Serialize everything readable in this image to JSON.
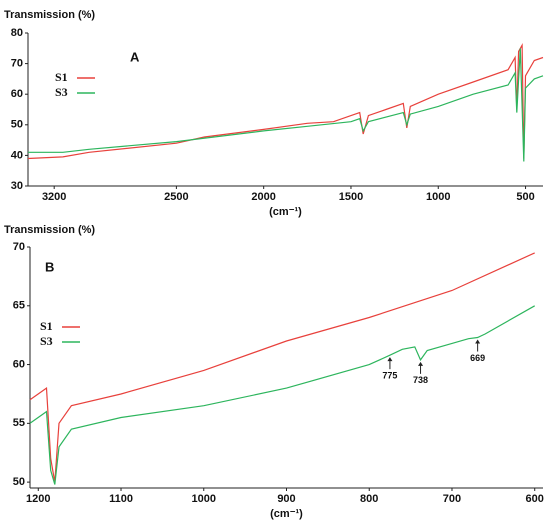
{
  "chart_data": [
    {
      "type": "line",
      "title": "Transmission (%)",
      "panel_label": "A",
      "x_label": "(cm⁻¹)",
      "xlim": [
        3350,
        400
      ],
      "xticks": [
        3200,
        2500,
        2000,
        1500,
        1000,
        500
      ],
      "ylim": [
        30,
        80
      ],
      "yticks": [
        30,
        40,
        50,
        60,
        70,
        80
      ],
      "series": [
        {
          "name": "S1",
          "color": "#e8413c",
          "x": [
            3350,
            3150,
            3000,
            2500,
            2340,
            2000,
            1750,
            1600,
            1500,
            1450,
            1430,
            1400,
            1300,
            1200,
            1180,
            1160,
            1000,
            800,
            600,
            560,
            550,
            540,
            520,
            510,
            500,
            450,
            400
          ],
          "values": [
            39,
            39.5,
            41,
            44,
            46,
            48.5,
            50.5,
            51,
            53,
            54,
            47,
            53,
            55,
            57,
            49,
            56,
            60,
            64,
            68,
            72,
            55,
            74,
            76,
            39,
            66,
            71,
            72
          ]
        },
        {
          "name": "S3",
          "color": "#2db55d",
          "x": [
            3350,
            3150,
            3000,
            2500,
            2000,
            1750,
            1500,
            1450,
            1430,
            1400,
            1200,
            1180,
            1160,
            1000,
            800,
            600,
            560,
            550,
            530,
            510,
            500,
            450,
            400
          ],
          "values": [
            41,
            41,
            42,
            44.5,
            48,
            49.5,
            51,
            52,
            48,
            51,
            54,
            50,
            53.5,
            56,
            60,
            63,
            67,
            54,
            75,
            38,
            62,
            65,
            66
          ]
        }
      ]
    },
    {
      "type": "line",
      "title": "Transmission (%)",
      "panel_label": "B",
      "x_label": "(cm⁻¹)",
      "xlim": [
        1210,
        590
      ],
      "xticks": [
        1200,
        1100,
        1000,
        900,
        800,
        700,
        600
      ],
      "ylim": [
        49.5,
        70
      ],
      "yticks": [
        50,
        55,
        60,
        65,
        70
      ],
      "series": [
        {
          "name": "S1",
          "color": "#e8413c",
          "x": [
            1210,
            1190,
            1185,
            1180,
            1175,
            1160,
            1100,
            1000,
            900,
            800,
            700,
            600
          ],
          "values": [
            57,
            58,
            52,
            50,
            55,
            56.5,
            57.5,
            59.5,
            62,
            64,
            66.3,
            69.5
          ]
        },
        {
          "name": "S3",
          "color": "#2db55d",
          "x": [
            1210,
            1190,
            1185,
            1180,
            1175,
            1160,
            1100,
            1000,
            900,
            800,
            775,
            760,
            745,
            738,
            730,
            700,
            680,
            669,
            660,
            600
          ],
          "values": [
            55,
            56,
            51,
            49.8,
            53,
            54.5,
            55.5,
            56.5,
            58,
            60,
            60.8,
            61.3,
            61.5,
            60.4,
            61.2,
            61.8,
            62.2,
            62.3,
            62.6,
            65
          ]
        }
      ],
      "annotations": [
        {
          "label": "775",
          "x": 775,
          "y": 60.8
        },
        {
          "label": "738",
          "x": 738,
          "y": 60.4
        },
        {
          "label": "669",
          "x": 669,
          "y": 62.3
        }
      ]
    }
  ]
}
